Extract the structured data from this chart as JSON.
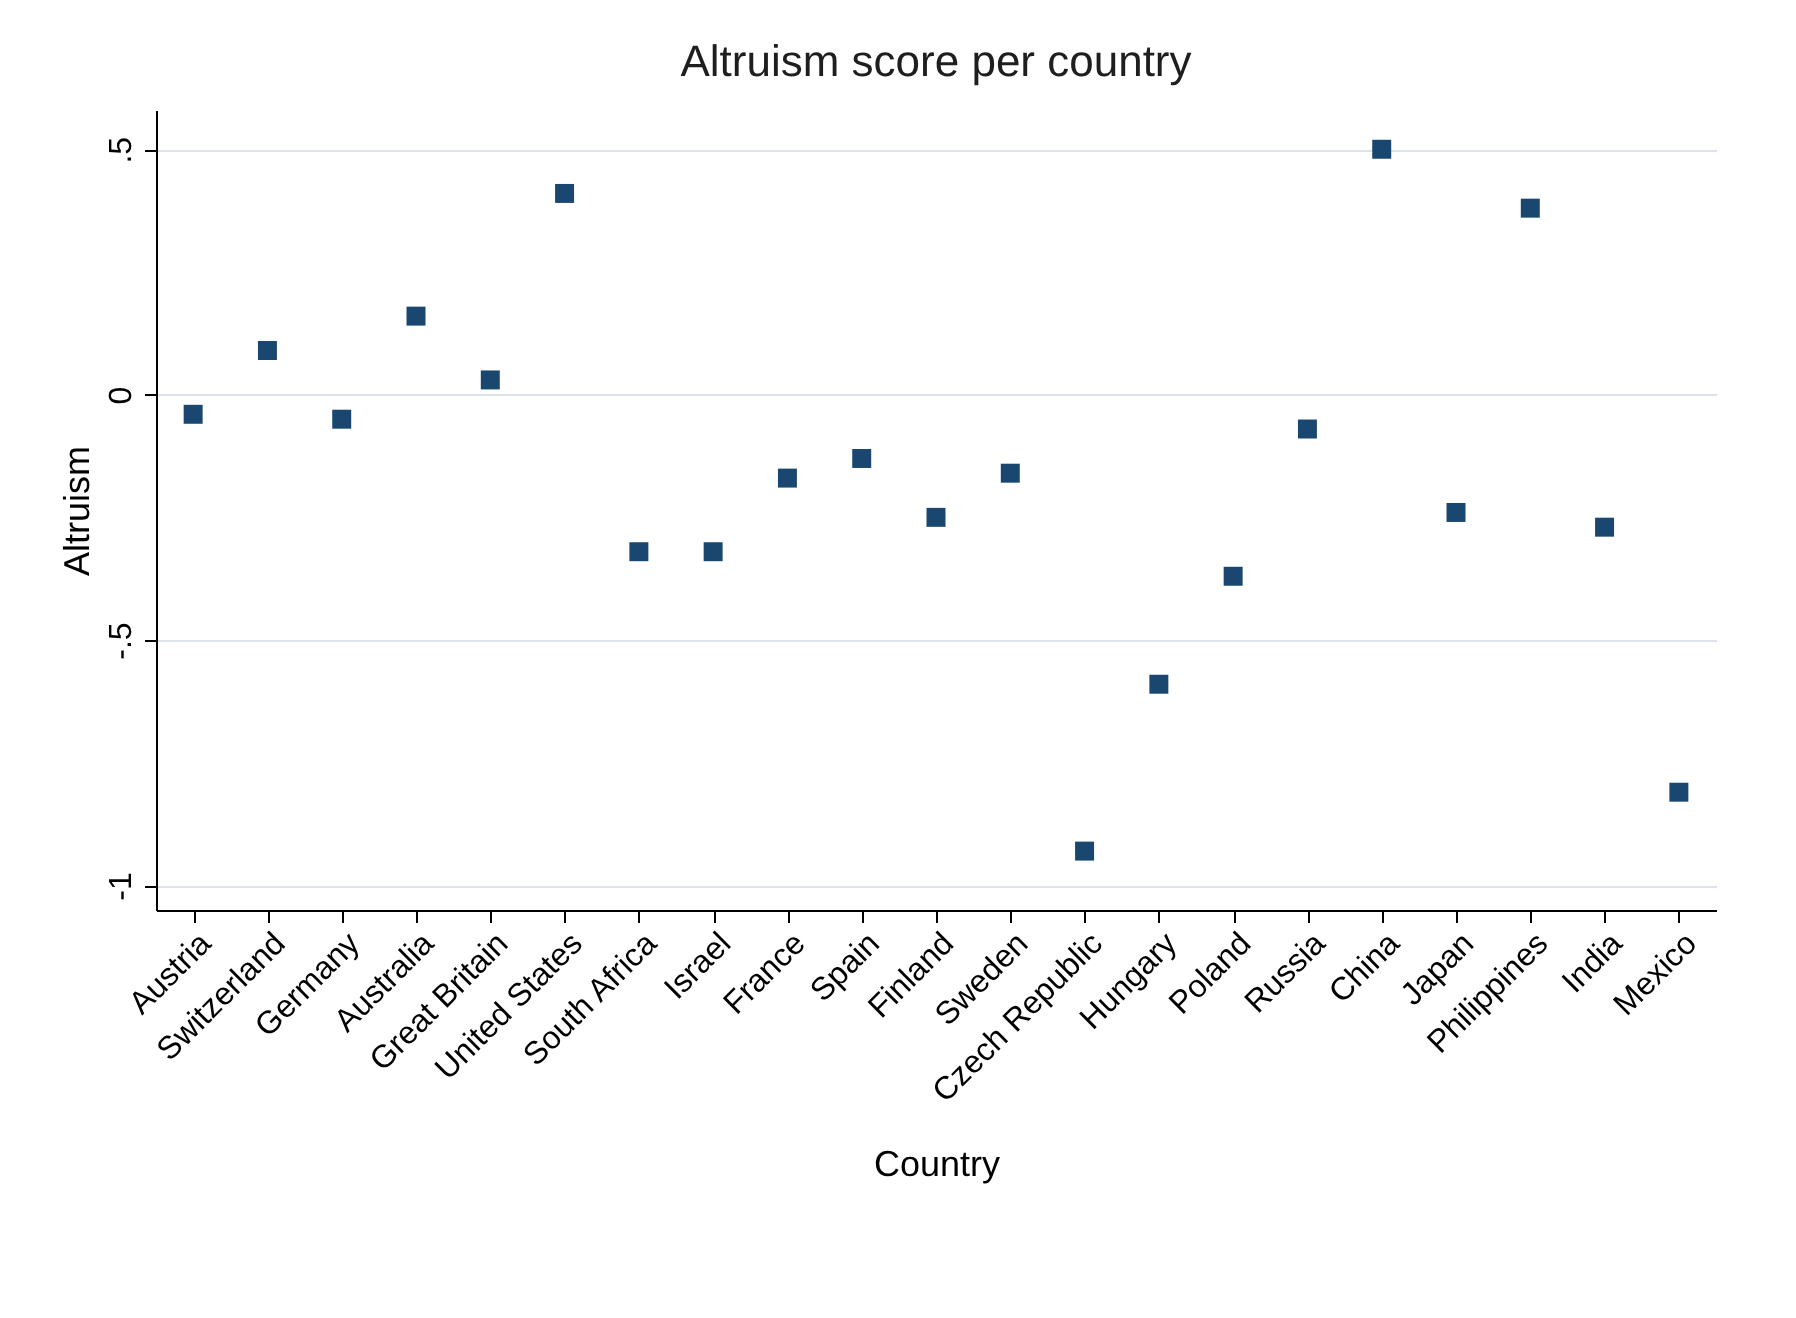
{
  "chart_data": {
    "type": "scatter",
    "title": "Altruism score per country",
    "xlabel": "Country",
    "ylabel": "Altruism",
    "categories": [
      "Austria",
      "Switzerland",
      "Germany",
      "Australia",
      "Great Britain",
      "United States",
      "South Africa",
      "Israel",
      "France",
      "Spain",
      "Finland",
      "Sweden",
      "Czech Republic",
      "Hungary",
      "Poland",
      "Russia",
      "China",
      "Japan",
      "Philippines",
      "India",
      "Mexico"
    ],
    "series": [
      {
        "color": "#1a476f",
        "values": [
          -0.04,
          0.09,
          -0.05,
          0.16,
          0.03,
          0.41,
          -0.32,
          -0.32,
          -0.17,
          -0.13,
          -0.25,
          -0.16,
          -0.93,
          -0.59,
          -0.37,
          -0.07,
          0.5,
          -0.24,
          0.38,
          -0.27,
          -0.81
        ]
      }
    ],
    "ylim": [
      -1.05,
      0.58
    ],
    "yticks": [
      {
        "value": -1,
        "label": "-1"
      },
      {
        "value": -0.5,
        "label": "-.5"
      },
      {
        "value": 0,
        "label": "0"
      },
      {
        "value": 0.5,
        "label": ".5"
      }
    ],
    "grid": "y",
    "marker": "square"
  }
}
